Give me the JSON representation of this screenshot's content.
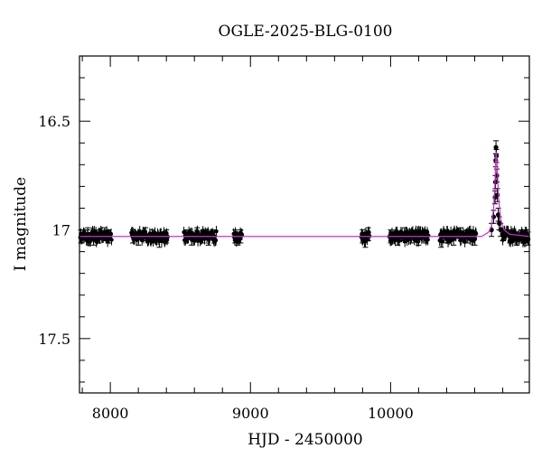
{
  "chart_data": {
    "type": "scatter",
    "title": "OGLE-2025-BLG-0100",
    "xlabel": "HJD - 2450000",
    "ylabel": "I magnitude",
    "xlim": [
      7780,
      10990
    ],
    "ylim": [
      17.75,
      16.2
    ],
    "y_inverted": true,
    "x_ticks": [
      8000,
      9000,
      10000
    ],
    "x_tick_labels": [
      "8000",
      "9000",
      "10000"
    ],
    "y_ticks": [
      16.5,
      17,
      17.5
    ],
    "y_tick_labels": [
      "16.5",
      "17",
      "17.5"
    ],
    "grid": false,
    "colors": {
      "data": "#000000",
      "model": "#cc33cc"
    },
    "baseline_mag": 17.03,
    "series": [
      {
        "type": "points_with_errorbars",
        "x": [
          7790,
          7840,
          7880,
          7920,
          7960,
          7990,
          8160,
          8200,
          8250,
          8300,
          8350,
          8400,
          8540,
          8580,
          8620,
          8660,
          8700,
          8740,
          8890,
          8910,
          8930,
          9800,
          9820,
          9840,
          10000,
          10050,
          10100,
          10150,
          10200,
          10250,
          10360,
          10400,
          10450,
          10500,
          10550,
          10600,
          10720,
          10735,
          10745,
          10748,
          10750,
          10752,
          10755,
          10758,
          10762,
          10768,
          10775,
          10785,
          10800,
          10850,
          10900,
          10950,
          10980
        ],
        "y": [
          17.03,
          17.02,
          17.04,
          17.03,
          17.02,
          17.03,
          17.03,
          17.04,
          17.02,
          17.03,
          17.05,
          17.03,
          17.03,
          17.04,
          17.02,
          17.03,
          17.04,
          17.03,
          17.03,
          17.04,
          17.03,
          17.03,
          17.05,
          17.02,
          17.03,
          17.04,
          17.02,
          17.03,
          17.04,
          17.03,
          17.05,
          17.03,
          17.04,
          17.02,
          17.03,
          17.04,
          17.0,
          16.94,
          16.85,
          16.78,
          16.68,
          16.62,
          16.66,
          16.75,
          16.84,
          16.93,
          16.97,
          17.0,
          17.02,
          17.03,
          17.04,
          17.03,
          17.04
        ],
        "yerr": 0.03
      },
      {
        "type": "model_line",
        "x": [
          7780,
          10650,
          10700,
          10720,
          10735,
          10745,
          10752,
          10760,
          10770,
          10785,
          10810,
          10850,
          10990
        ],
        "y": [
          17.03,
          17.03,
          17.01,
          16.98,
          16.9,
          16.78,
          16.64,
          16.7,
          16.85,
          16.95,
          17.0,
          17.02,
          17.03
        ]
      }
    ]
  }
}
